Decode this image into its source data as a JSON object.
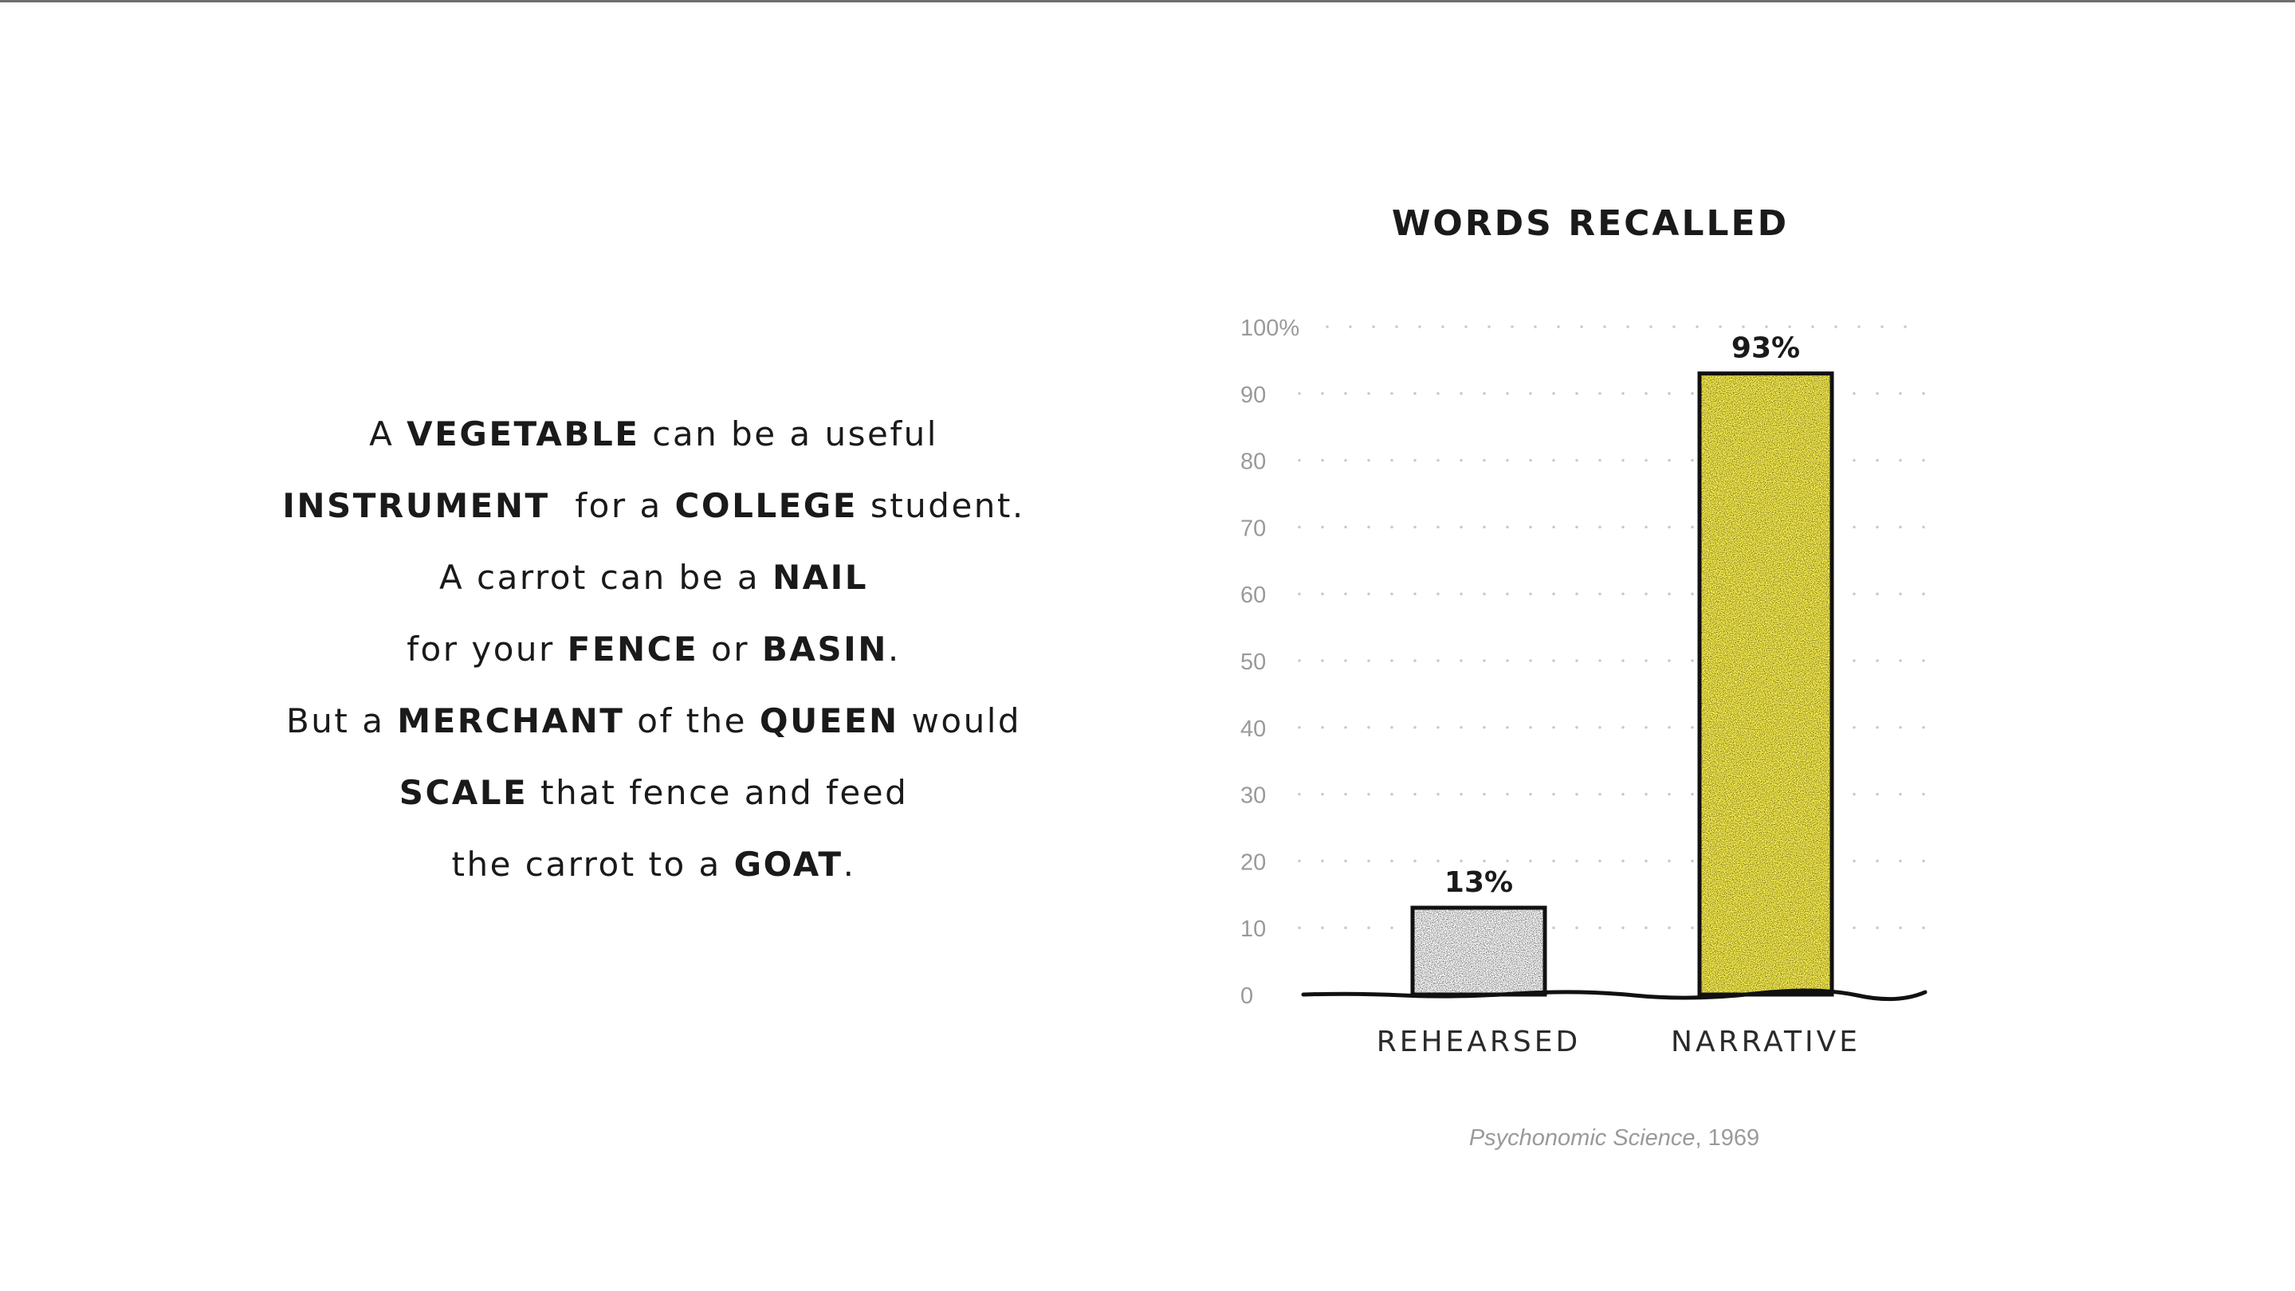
{
  "story": {
    "lines": [
      [
        {
          "t": "A ",
          "b": false
        },
        {
          "t": "VEGETABLE",
          "b": true
        },
        {
          "t": " can be a useful",
          "b": false
        }
      ],
      [
        {
          "t": "INSTRUMENT",
          "b": true
        },
        {
          "t": "  for a ",
          "b": false
        },
        {
          "t": "COLLEGE",
          "b": true
        },
        {
          "t": " student.",
          "b": false
        }
      ],
      [
        {
          "t": "A carrot can be a ",
          "b": false
        },
        {
          "t": "NAIL",
          "b": true
        }
      ],
      [
        {
          "t": "for your ",
          "b": false
        },
        {
          "t": "FENCE",
          "b": true
        },
        {
          "t": " or ",
          "b": false
        },
        {
          "t": "BASIN",
          "b": true
        },
        {
          "t": ".",
          "b": false
        }
      ],
      [
        {
          "t": "But a ",
          "b": false
        },
        {
          "t": "MERCHANT",
          "b": true
        },
        {
          "t": " of the ",
          "b": false
        },
        {
          "t": "QUEEN",
          "b": true
        },
        {
          "t": " would",
          "b": false
        }
      ],
      [
        {
          "t": "SCALE",
          "b": true
        },
        {
          "t": " that fence and feed",
          "b": false
        }
      ],
      [
        {
          "t": "the carrot to a ",
          "b": false
        },
        {
          "t": "GOAT",
          "b": true
        },
        {
          "t": ".",
          "b": false
        }
      ]
    ]
  },
  "chart_data": {
    "type": "bar",
    "title": "WORDS RECALLED",
    "categories": [
      "REHEARSED",
      "NARRATIVE"
    ],
    "values": [
      13,
      93
    ],
    "value_labels": [
      "13%",
      "93%"
    ],
    "bar_colors": [
      "#ffffff",
      "#fff44f"
    ],
    "ylim": [
      0,
      100
    ],
    "yticks": [
      0,
      10,
      20,
      30,
      40,
      50,
      60,
      70,
      80,
      90,
      100
    ],
    "ytick_labels": [
      "0",
      "10",
      "20",
      "30",
      "40",
      "50",
      "60",
      "70",
      "80",
      "90",
      "100%"
    ],
    "grid": "dotted",
    "xlabel": "",
    "ylabel": ""
  },
  "source": {
    "journal": "Psychonomic Science",
    "year": ", 1969"
  },
  "colors": {
    "accent_yellow": "#fff44f",
    "ink": "#1a1a1a",
    "muted": "#9a9a9a"
  }
}
